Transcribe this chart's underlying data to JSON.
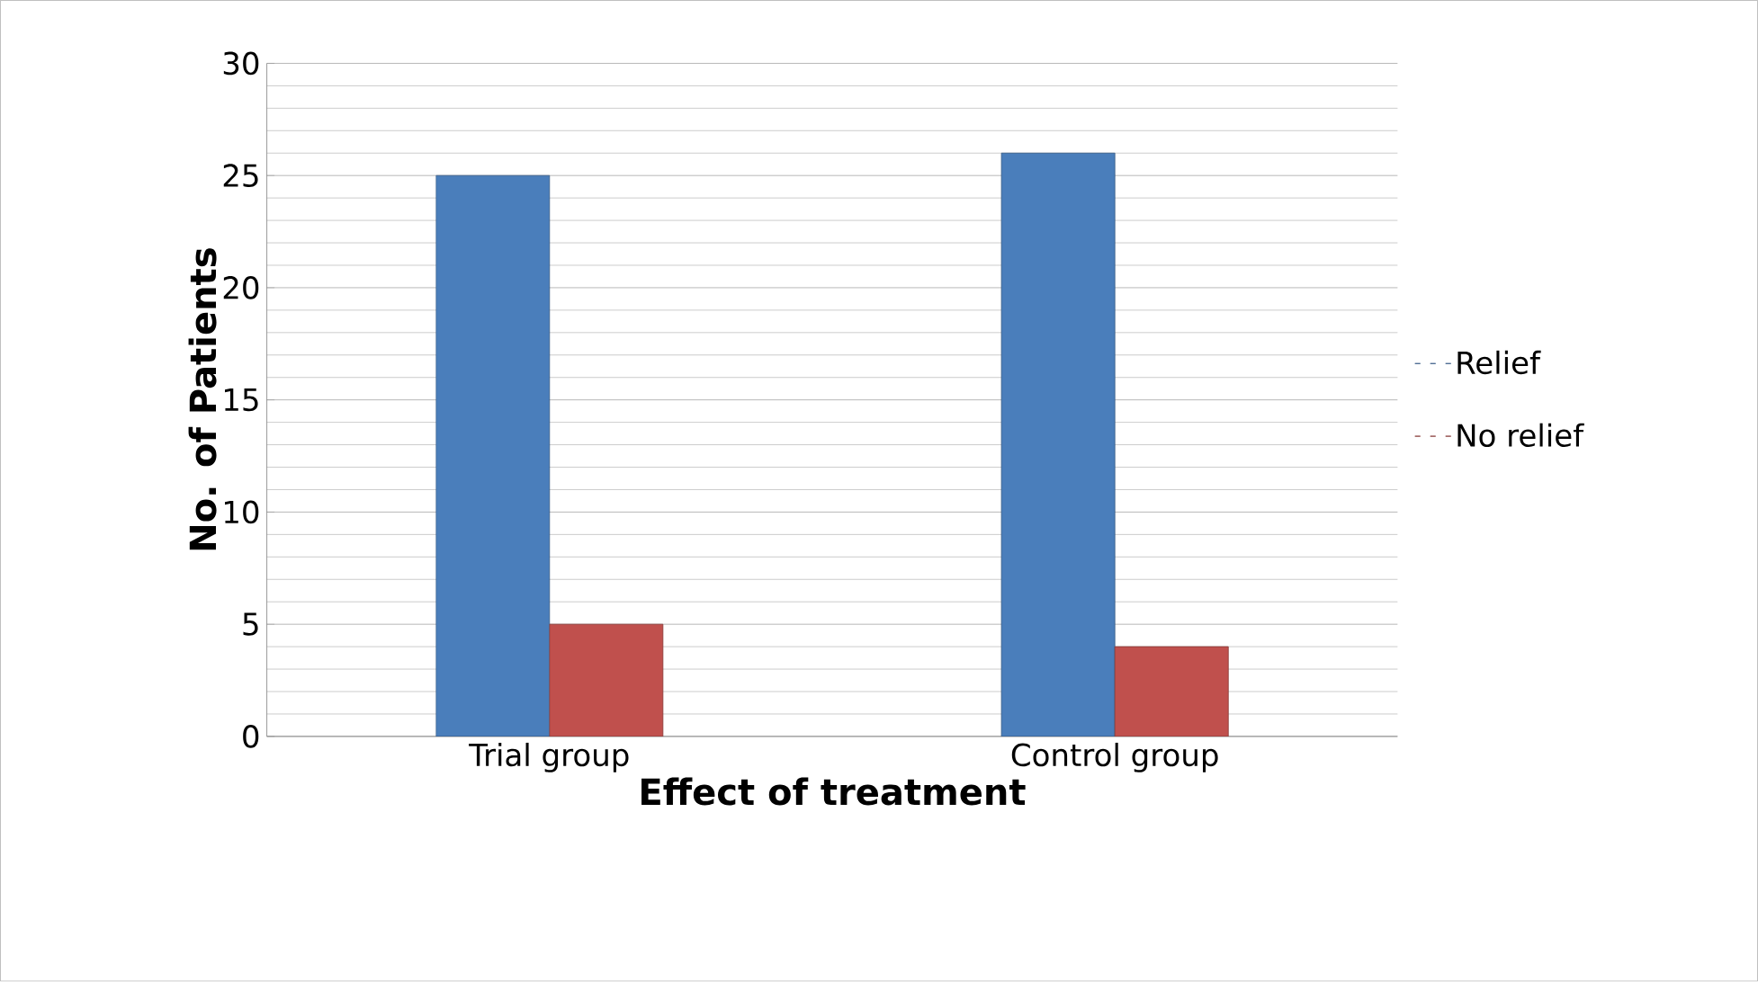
{
  "chart_data": {
    "type": "bar",
    "xlabel": "Effect of treatment",
    "ylabel": "No. of Patients",
    "categories": [
      "Trial group",
      "Control group"
    ],
    "series": [
      {
        "name": "Relief",
        "color": "#4a7ebb",
        "values": [
          25,
          26
        ]
      },
      {
        "name": "No relief",
        "color": "#c0504d",
        "values": [
          5,
          4
        ]
      }
    ],
    "ylim": [
      0,
      30
    ],
    "yticks": [
      0,
      5,
      10,
      15,
      20,
      25,
      30
    ],
    "grid": "y",
    "legend": "right"
  }
}
